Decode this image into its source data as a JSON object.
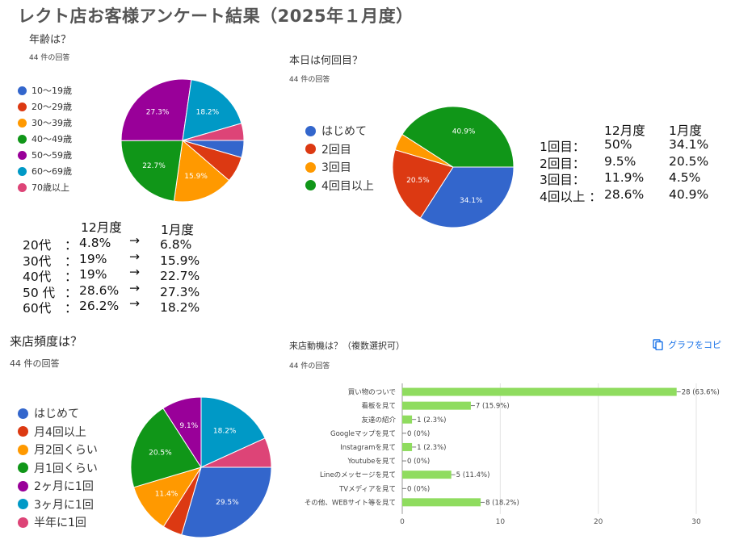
{
  "page_title": "レクト店お客様アンケート結果（2025年１月度）",
  "copy_button_label": "グラフをコピ",
  "age": {
    "question": "年齢は？",
    "count": "44 件の回答",
    "comparison": {
      "header_dec": "12月度",
      "header_jan": "1月度",
      "rows": [
        {
          "label": "20代",
          "sep": "：",
          "dec": "4.8%",
          "arrow": "→",
          "jan": "6.8%"
        },
        {
          "label": "30代",
          "sep": "：",
          "dec": "19%",
          "arrow": "→",
          "jan": "15.9%"
        },
        {
          "label": "40代",
          "sep": "：",
          "dec": "19%",
          "arrow": "→",
          "jan": "22.7%"
        },
        {
          "label": "50 代",
          "sep": "：",
          "dec": "28.6%",
          "arrow": "→",
          "jan": "27.3%"
        },
        {
          "label": "60代",
          "sep": "：",
          "dec": "26.2%",
          "arrow": "→",
          "jan": "18.2%"
        }
      ]
    }
  },
  "visits": {
    "question": "本日は何回目？",
    "count": "44 件の回答",
    "comparison": {
      "header_dec": "12月度",
      "header_jan": "1月度",
      "rows": [
        {
          "label": "1回目：",
          "dec": "50%",
          "jan": "34.1%"
        },
        {
          "label": "2回目：",
          "dec": "9.5%",
          "jan": "20.5%"
        },
        {
          "label": "3回目：",
          "dec": "11.9%",
          "jan": "4.5%"
        },
        {
          "label": "4回以上 ：",
          "dec": "28.6%",
          "jan": "40.9%"
        }
      ]
    }
  },
  "frequency": {
    "question": "来店頻度は？",
    "count": "44 件の回答"
  },
  "motive": {
    "question": "来店動機は？（複数選択可）",
    "count": "44 件の回答"
  },
  "chart_data": [
    {
      "type": "pie",
      "categories": [
        "10～19歳",
        "20～29歳",
        "30～39歳",
        "40～49歳",
        "50～59歳",
        "60～69歳",
        "70歳以上"
      ],
      "values": [
        4.5,
        6.8,
        15.9,
        22.7,
        27.3,
        18.2,
        4.5
      ],
      "slice_labels": [
        "",
        "",
        "15.9%",
        "22.7%",
        "27.3%",
        "18.2%",
        ""
      ],
      "colors": [
        "#3366cc",
        "#dc3912",
        "#ff9900",
        "#109618",
        "#990099",
        "#0099c6",
        "#dd4477"
      ],
      "legend": "left"
    },
    {
      "type": "pie",
      "categories": [
        "はじめて",
        "2回目",
        "3回目",
        "4回目以上"
      ],
      "values": [
        34.1,
        20.5,
        4.5,
        40.9
      ],
      "slice_labels": [
        "34.1%",
        "20.5%",
        "",
        "40.9%"
      ],
      "colors": [
        "#3366cc",
        "#dc3912",
        "#ff9900",
        "#109618"
      ],
      "legend": "left"
    },
    {
      "type": "pie",
      "categories": [
        "はじめて",
        "月4回以上",
        "月2回くらい",
        "月1回くらい",
        "2ヶ月に1回",
        "3ヶ月に1回",
        "半年に1回"
      ],
      "values": [
        29.5,
        4.5,
        11.4,
        20.5,
        9.1,
        18.2,
        6.8
      ],
      "slice_labels": [
        "29.5%",
        "",
        "11.4%",
        "20.5%",
        "9.1%",
        "18.2%",
        ""
      ],
      "colors": [
        "#3366cc",
        "#dc3912",
        "#ff9900",
        "#109618",
        "#990099",
        "#0099c6",
        "#dd4477"
      ],
      "legend": "left"
    },
    {
      "type": "bar",
      "orientation": "horizontal",
      "categories": [
        "買い物のついで",
        "看板を見て",
        "友達の紹介",
        "Googleマップを見て",
        "Instagramを見て",
        "Youtubeを見て",
        "Lineのメッセージを見て",
        "TVメディアを見て",
        "その他、WEBサイト等を見て"
      ],
      "values": [
        28,
        7,
        1,
        0,
        1,
        0,
        5,
        0,
        8
      ],
      "value_labels": [
        "28 (63.6%)",
        "7 (15.9%)",
        "1 (2.3%)",
        "0 (0%)",
        "1 (2.3%)",
        "0 (0%)",
        "5 (11.4%)",
        "0 (0%)",
        "8 (18.2%)"
      ],
      "xlim": [
        0,
        30
      ],
      "xticks": [
        0,
        10,
        20,
        30
      ],
      "color": "#8fdc5f",
      "grid": true
    }
  ]
}
